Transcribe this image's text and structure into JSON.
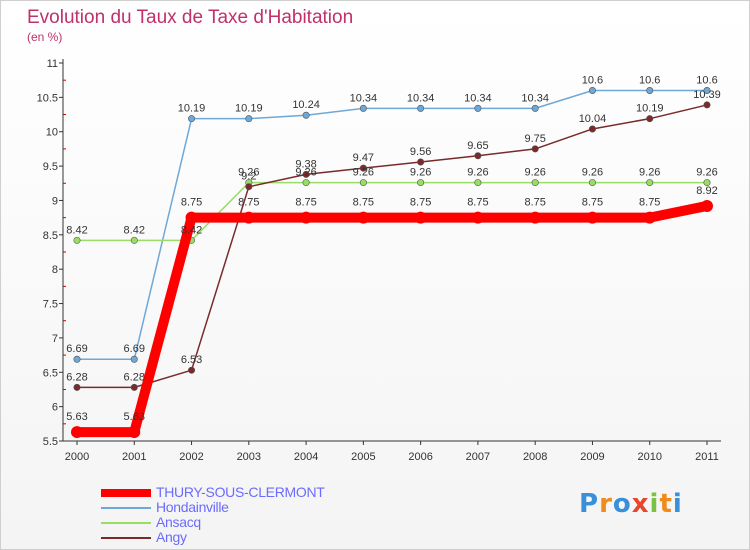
{
  "title": "Evolution du Taux de Taxe d'Habitation",
  "subtitle": "(en %)",
  "logo": {
    "letters": [
      "P",
      "r",
      "o",
      "x",
      "i",
      "t",
      "i"
    ],
    "colors": [
      "#3a8fd9",
      "#f08a1c",
      "#3a8fd9",
      "#e8452b",
      "#7cc242",
      "#f08a1c",
      "#3a8fd9"
    ]
  },
  "chart_data": {
    "type": "line",
    "title": "Evolution du Taux de Taxe d'Habitation",
    "ylabel": "(en %)",
    "xlabel": "",
    "x": [
      "2000",
      "2001",
      "2002",
      "2003",
      "2004",
      "2005",
      "2006",
      "2007",
      "2008",
      "2009",
      "2010",
      "2011"
    ],
    "ylim": [
      5.5,
      11
    ],
    "yticks": [
      "5.5",
      "6",
      "6.5",
      "7",
      "7.5",
      "8",
      "8.5",
      "9",
      "9.5",
      "10",
      "10.5",
      "11"
    ],
    "grid": false,
    "legend": "bottom-left",
    "series": [
      {
        "name": "THURY-SOUS-CLERMONT",
        "color": "#ff0000",
        "values": [
          5.63,
          5.63,
          8.75,
          8.75,
          8.75,
          8.75,
          8.75,
          8.75,
          8.75,
          8.75,
          8.75,
          8.92
        ],
        "labels": [
          "5.63",
          "5.63",
          "8.75",
          "8.75",
          "8.75",
          "8.75",
          "8.75",
          "8.75",
          "8.75",
          "8.75",
          "8.75",
          "8.92"
        ]
      },
      {
        "name": "Hondainville",
        "color": "#6fa8d6",
        "values": [
          6.69,
          6.69,
          10.19,
          10.19,
          10.24,
          10.34,
          10.34,
          10.34,
          10.34,
          10.6,
          10.6,
          10.6
        ],
        "labels": [
          "6.69",
          "6.69",
          "10.19",
          "10.19",
          "10.24",
          "10.34",
          "10.34",
          "10.34",
          "10.34",
          "10.6",
          "10.6",
          "10.6"
        ]
      },
      {
        "name": "Ansacq",
        "color": "#99dd66",
        "values": [
          8.42,
          8.42,
          8.42,
          9.26,
          9.26,
          9.26,
          9.26,
          9.26,
          9.26,
          9.26,
          9.26,
          9.26
        ],
        "labels": [
          "8.42",
          "8.42",
          "8.42",
          "9.26",
          "9.26",
          "9.26",
          "9.26",
          "9.26",
          "9.26",
          "9.26",
          "9.26",
          "9.26"
        ]
      },
      {
        "name": "Angy",
        "color": "#7a2a2a",
        "values": [
          6.28,
          6.28,
          6.53,
          9.2,
          9.38,
          9.47,
          9.56,
          9.65,
          9.75,
          10.04,
          10.19,
          10.39
        ],
        "labels": [
          "6.28",
          "6.28",
          "6.53",
          "9.2",
          "9.38",
          "9.47",
          "9.56",
          "9.65",
          "9.75",
          "10.04",
          "10.19",
          "10.39"
        ]
      }
    ]
  }
}
